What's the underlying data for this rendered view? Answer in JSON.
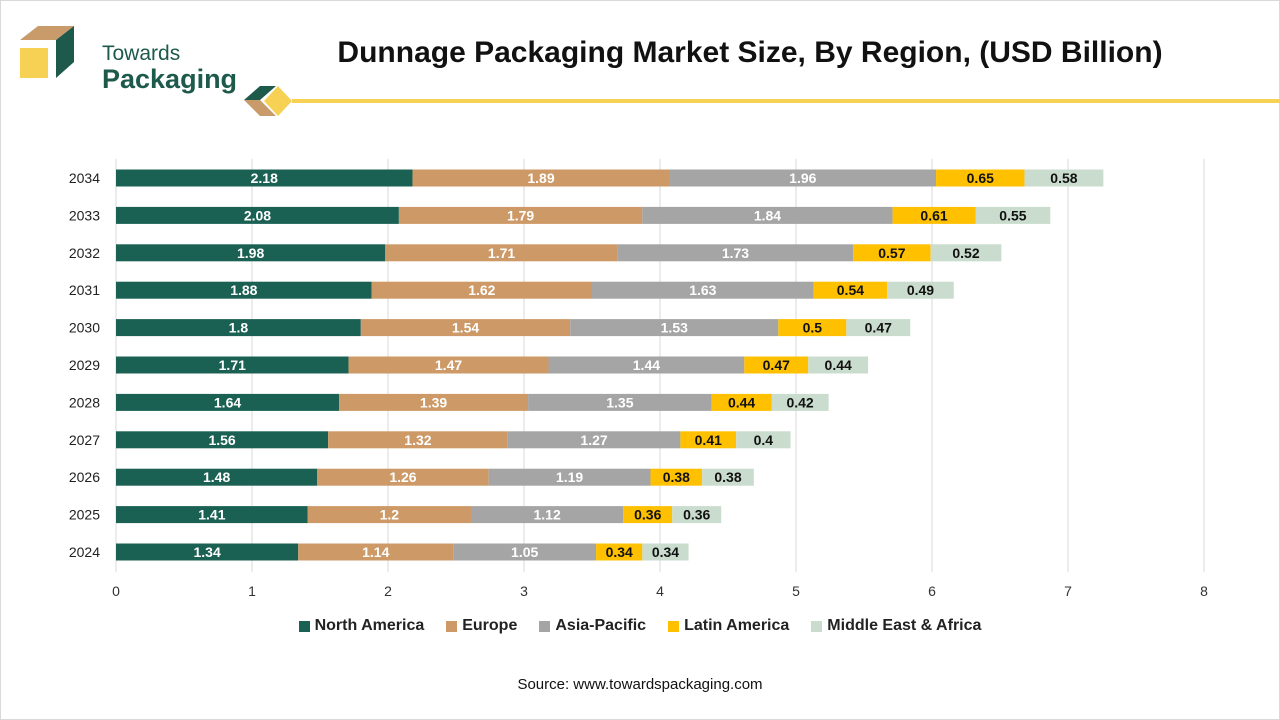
{
  "brand": {
    "line1": "Towards",
    "line2": "Packaging",
    "primary_color": "#1d5a4b",
    "accent_color": "#f7d154",
    "secondary_color": "#c99a6a"
  },
  "title": "Dunnage Packaging Market Size, By Region, (USD Billion)",
  "source": "Source: www.towardspackaging.com",
  "chart_data": {
    "type": "bar",
    "orientation": "horizontal",
    "stacked": true,
    "categories": [
      "2034",
      "2033",
      "2032",
      "2031",
      "2030",
      "2029",
      "2028",
      "2027",
      "2026",
      "2025",
      "2024"
    ],
    "series": [
      {
        "name": "North America",
        "color": "#1b6153",
        "label_color": "#ffffff",
        "values": [
          2.18,
          2.08,
          1.98,
          1.88,
          1.8,
          1.71,
          1.64,
          1.56,
          1.48,
          1.41,
          1.34
        ]
      },
      {
        "name": "Europe",
        "color": "#cd9966",
        "label_color": "#ffffff",
        "values": [
          1.89,
          1.79,
          1.71,
          1.62,
          1.54,
          1.47,
          1.39,
          1.32,
          1.26,
          1.2,
          1.14
        ]
      },
      {
        "name": "Asia-Pacific",
        "color": "#a5a5a5",
        "label_color": "#ffffff",
        "values": [
          1.96,
          1.84,
          1.73,
          1.63,
          1.53,
          1.44,
          1.35,
          1.27,
          1.19,
          1.12,
          1.05
        ]
      },
      {
        "name": "Latin America",
        "color": "#ffc000",
        "label_color": "#111111",
        "values": [
          0.65,
          0.61,
          0.57,
          0.54,
          0.5,
          0.47,
          0.44,
          0.41,
          0.38,
          0.36,
          0.34
        ]
      },
      {
        "name": "Middle East & Africa",
        "color": "#c9dccd",
        "label_color": "#111111",
        "values": [
          0.58,
          0.55,
          0.52,
          0.49,
          0.47,
          0.44,
          0.42,
          0.4,
          0.38,
          0.36,
          0.34
        ]
      }
    ],
    "xlim": [
      0,
      8
    ],
    "xticks": [
      "0",
      "1",
      "2",
      "3",
      "4",
      "5",
      "6",
      "7",
      "8"
    ],
    "grid": true,
    "legend_position": "bottom"
  }
}
